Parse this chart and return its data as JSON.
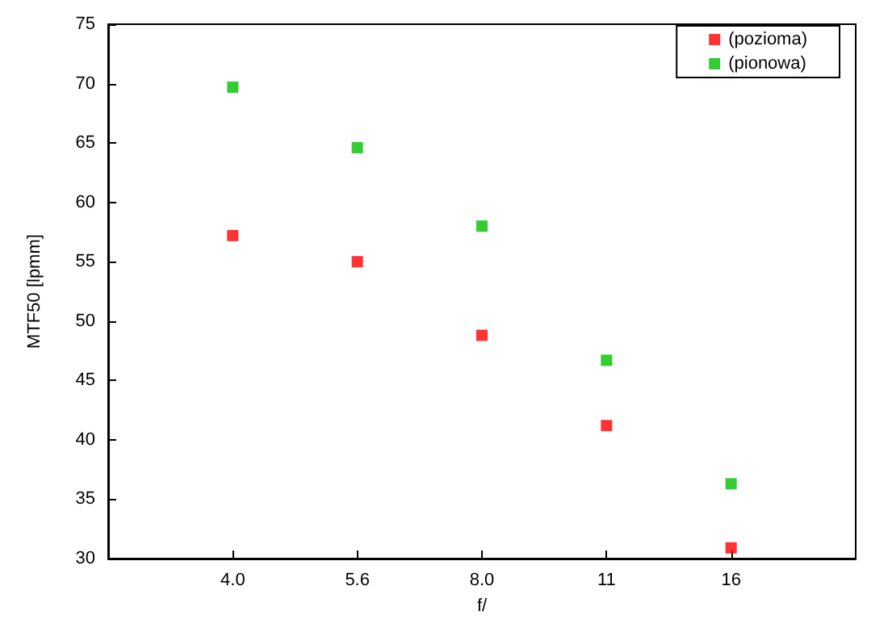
{
  "chart_data": {
    "type": "scatter",
    "xlabel": "f/",
    "ylabel": "MTF50 [lpmm]",
    "categories": [
      "4.0",
      "5.6",
      "8.0",
      "11",
      "16"
    ],
    "series": [
      {
        "name": "(pozioma)",
        "color": "#ff0000",
        "values": [
          57.2,
          55.0,
          48.8,
          41.2,
          30.9
        ]
      },
      {
        "name": "(pionowa)",
        "color": "#00c000",
        "values": [
          69.7,
          64.6,
          58.0,
          46.7,
          36.3
        ]
      }
    ],
    "ylim": [
      30,
      75
    ],
    "yticks": [
      30,
      35,
      40,
      45,
      50,
      55,
      60,
      65,
      70,
      75
    ],
    "grid": false,
    "legend": "top right",
    "marker": "square"
  }
}
